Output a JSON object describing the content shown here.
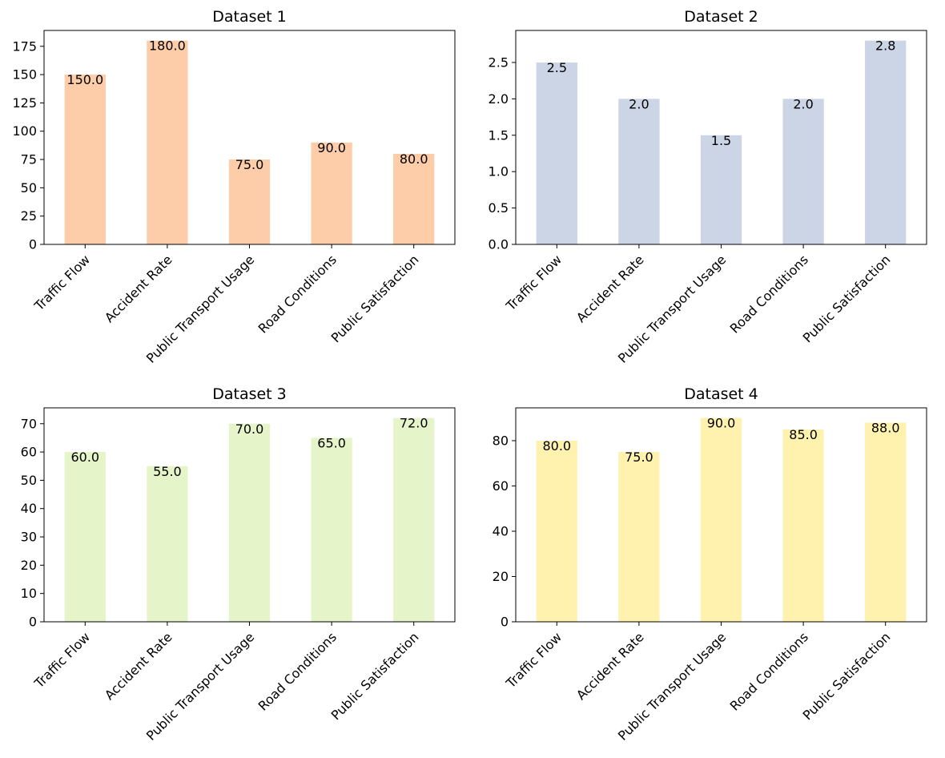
{
  "chart_data": [
    {
      "type": "bar",
      "title": "Dataset 1",
      "categories": [
        "Traffic Flow",
        "Accident Rate",
        "Public Transport Usage",
        "Road Conditions",
        "Public Satisfaction"
      ],
      "values": [
        150.0,
        180.0,
        75.0,
        90.0,
        80.0
      ],
      "data_labels": [
        "150.0",
        "180.0",
        "75.0",
        "90.0",
        "80.0"
      ],
      "ylim": [
        0,
        189
      ],
      "yticks": [
        0,
        25,
        50,
        75,
        100,
        125,
        150,
        175
      ],
      "ytick_labels": [
        "0",
        "25",
        "50",
        "75",
        "100",
        "125",
        "150",
        "175"
      ],
      "color": "#fdcca8",
      "grid": false
    },
    {
      "type": "bar",
      "title": "Dataset 2",
      "categories": [
        "Traffic Flow",
        "Accident Rate",
        "Public Transport Usage",
        "Road Conditions",
        "Public Satisfaction"
      ],
      "values": [
        2.5,
        2.0,
        1.5,
        2.0,
        2.8
      ],
      "data_labels": [
        "2.5",
        "2.0",
        "1.5",
        "2.0",
        "2.8"
      ],
      "ylim": [
        0,
        2.94
      ],
      "yticks": [
        0.0,
        0.5,
        1.0,
        1.5,
        2.0,
        2.5
      ],
      "ytick_labels": [
        "0.0",
        "0.5",
        "1.0",
        "1.5",
        "2.0",
        "2.5"
      ],
      "color": "#cbd5e6",
      "grid": false
    },
    {
      "type": "bar",
      "title": "Dataset 3",
      "categories": [
        "Traffic Flow",
        "Accident Rate",
        "Public Transport Usage",
        "Road Conditions",
        "Public Satisfaction"
      ],
      "values": [
        60.0,
        55.0,
        70.0,
        65.0,
        72.0
      ],
      "data_labels": [
        "60.0",
        "55.0",
        "70.0",
        "65.0",
        "72.0"
      ],
      "ylim": [
        0,
        75.6
      ],
      "yticks": [
        0,
        10,
        20,
        30,
        40,
        50,
        60,
        70
      ],
      "ytick_labels": [
        "0",
        "10",
        "20",
        "30",
        "40",
        "50",
        "60",
        "70"
      ],
      "color": "#e5f5c9",
      "grid": false
    },
    {
      "type": "bar",
      "title": "Dataset 4",
      "categories": [
        "Traffic Flow",
        "Accident Rate",
        "Public Transport Usage",
        "Road Conditions",
        "Public Satisfaction"
      ],
      "values": [
        80.0,
        75.0,
        90.0,
        85.0,
        88.0
      ],
      "data_labels": [
        "80.0",
        "75.0",
        "90.0",
        "85.0",
        "88.0"
      ],
      "ylim": [
        0,
        94.5
      ],
      "yticks": [
        0,
        20,
        40,
        60,
        80
      ],
      "ytick_labels": [
        "0",
        "20",
        "40",
        "60",
        "80"
      ],
      "color": "#fff2ae",
      "grid": false
    }
  ]
}
